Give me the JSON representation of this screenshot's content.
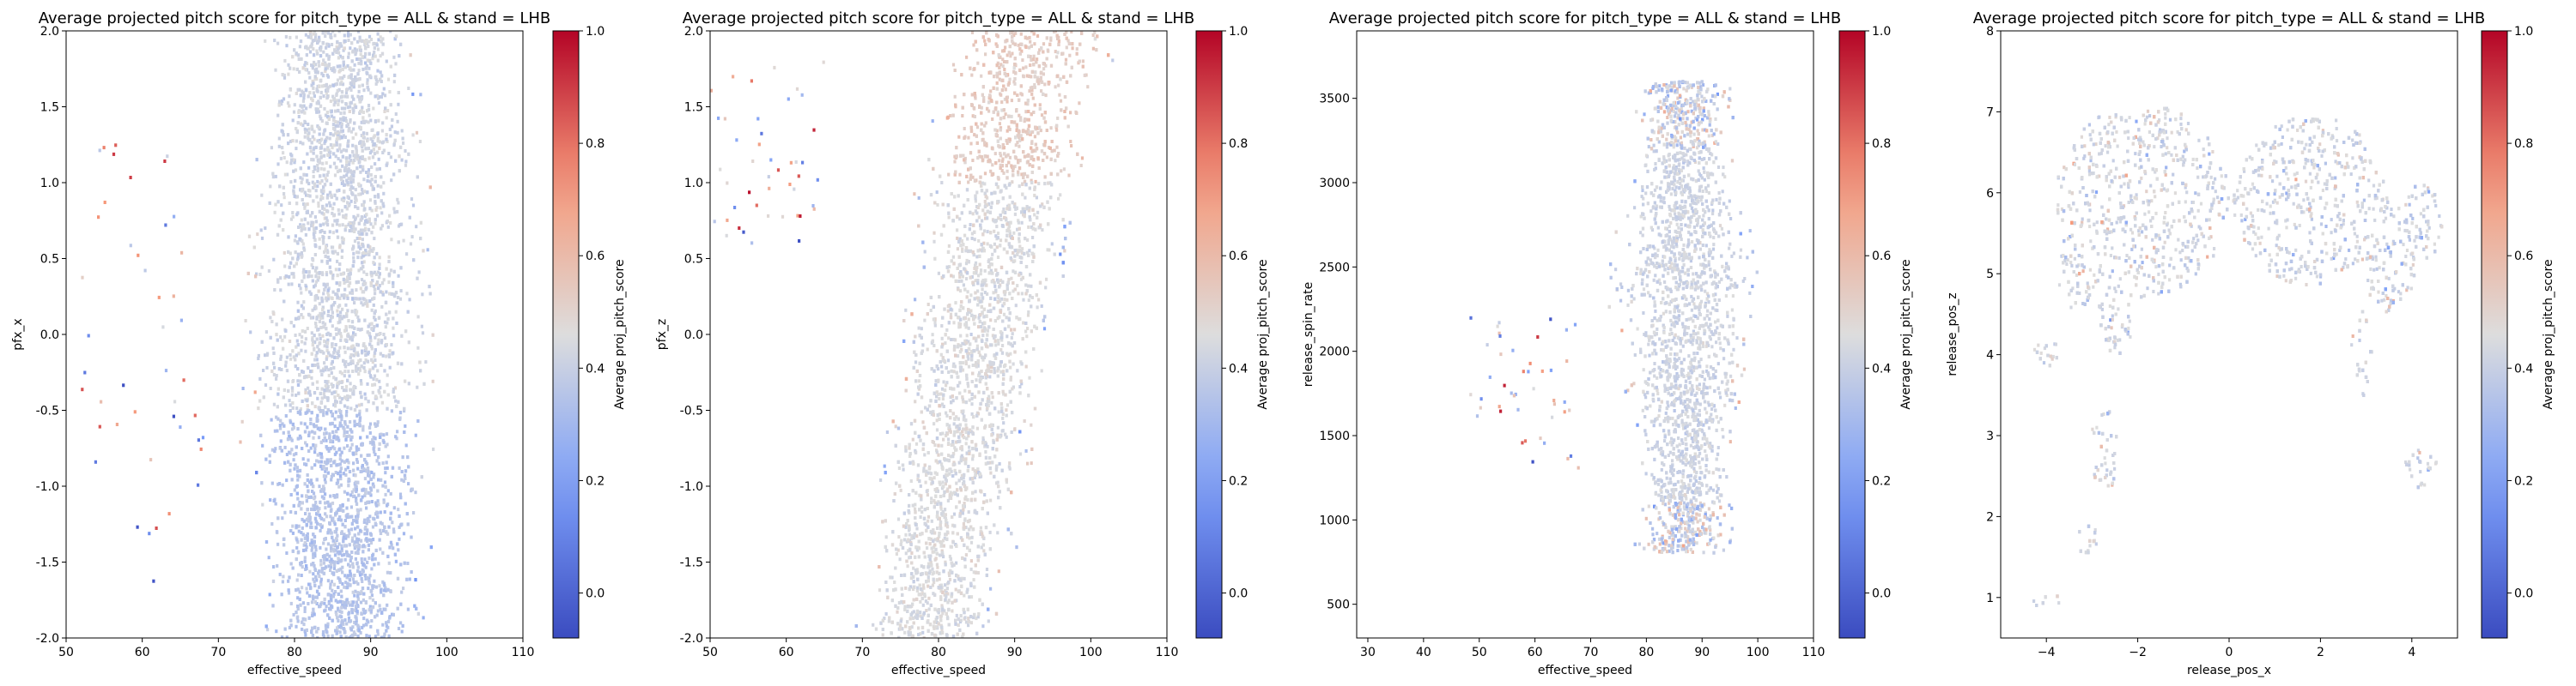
{
  "chart_data": [
    {
      "type": "heatmap",
      "title": "Average projected pitch score for pitch_type = ALL & stand = LHB",
      "xlabel": "effective_speed",
      "ylabel": "pfx_x",
      "xlim": [
        50,
        110
      ],
      "ylim": [
        -2.0,
        2.0
      ],
      "xticks": [
        "50",
        "60",
        "70",
        "80",
        "90",
        "100",
        "110"
      ],
      "yticks": [
        "-2.0",
        "-1.5",
        "-1.0",
        "-0.5",
        "0.0",
        "0.5",
        "1.0",
        "1.5",
        "2.0"
      ],
      "colorbar": {
        "label": "Average proj_pitch_score",
        "colormap": "coolwarm",
        "range": [
          -0.08,
          1.0
        ],
        "ticks": [
          "0.0",
          "0.2",
          "0.4",
          "0.6",
          "0.8",
          "1.0"
        ]
      },
      "density_regions": [
        {
          "x": [
            70,
            102
          ],
          "y": [
            -2.0,
            2.0
          ],
          "mean_score": 0.42
        }
      ]
    },
    {
      "type": "heatmap",
      "title": "Average projected pitch score for pitch_type = ALL & stand = LHB",
      "xlabel": "effective_speed",
      "ylabel": "pfx_z",
      "xlim": [
        50,
        110
      ],
      "ylim": [
        -2.0,
        2.0
      ],
      "xticks": [
        "50",
        "60",
        "70",
        "80",
        "90",
        "100",
        "110"
      ],
      "yticks": [
        "-2.0",
        "-1.5",
        "-1.0",
        "-0.5",
        "0.0",
        "0.5",
        "1.0",
        "1.5",
        "2.0"
      ],
      "colorbar": {
        "label": "Average proj_pitch_score",
        "colormap": "coolwarm",
        "range": [
          -0.08,
          1.0
        ],
        "ticks": [
          "0.0",
          "0.2",
          "0.4",
          "0.6",
          "0.8",
          "1.0"
        ]
      },
      "density_regions": [
        {
          "x": [
            65,
            103
          ],
          "y": [
            -2.0,
            2.0
          ],
          "mean_score": 0.45,
          "trend": "pfx_z increases with effective_speed"
        }
      ]
    },
    {
      "type": "heatmap",
      "title": "Average projected pitch score for pitch_type = ALL & stand = LHB",
      "xlabel": "effective_speed",
      "ylabel": "release_spin_rate",
      "xlim": [
        28,
        110
      ],
      "ylim": [
        300,
        3900
      ],
      "xticks": [
        "30",
        "40",
        "50",
        "60",
        "70",
        "80",
        "90",
        "100",
        "110"
      ],
      "yticks": [
        "500",
        "1000",
        "1500",
        "2000",
        "2500",
        "3000",
        "3500"
      ],
      "colorbar": {
        "label": "Average proj_pitch_score",
        "colormap": "coolwarm",
        "range": [
          -0.08,
          1.0
        ],
        "ticks": [
          "0.0",
          "0.2",
          "0.4",
          "0.6",
          "0.8",
          "1.0"
        ]
      },
      "density_regions": [
        {
          "x": [
            50,
            103
          ],
          "y": [
            700,
            3700
          ],
          "mean_score": 0.42
        }
      ]
    },
    {
      "type": "heatmap",
      "title": "Average projected pitch score for pitch_type = ALL & stand = LHB",
      "xlabel": "release_pos_x",
      "ylabel": "release_pos_z",
      "xlim": [
        -5,
        5
      ],
      "ylim": [
        0.5,
        8.0
      ],
      "xticks": [
        "−4",
        "−2",
        "0",
        "2",
        "4"
      ],
      "yticks": [
        "1",
        "2",
        "3",
        "4",
        "5",
        "6",
        "7",
        "8"
      ],
      "colorbar": {
        "label": "Average proj_pitch_score",
        "colormap": "coolwarm",
        "range": [
          -0.08,
          1.0
        ],
        "ticks": [
          "0.0",
          "0.2",
          "0.4",
          "0.6",
          "0.8",
          "1.0"
        ]
      },
      "density_regions": [
        {
          "x": [
            -3.8,
            4.8
          ],
          "y": [
            4.5,
            7.3
          ],
          "mean_score": 0.42,
          "shape": "arch"
        },
        {
          "x": [
            -4.4,
            -3.6
          ],
          "y": [
            0.8,
            1.1
          ],
          "mean_score": 0.35
        },
        {
          "x": [
            -3.4,
            -2.8
          ],
          "y": [
            1.5,
            1.9
          ],
          "mean_score": 0.35
        },
        {
          "x": [
            -3.0,
            -2.4
          ],
          "y": [
            2.3,
            3.4
          ],
          "mean_score": 0.45
        },
        {
          "x": [
            3.8,
            4.6
          ],
          "y": [
            2.3,
            2.9
          ],
          "mean_score": 0.35
        }
      ]
    }
  ]
}
